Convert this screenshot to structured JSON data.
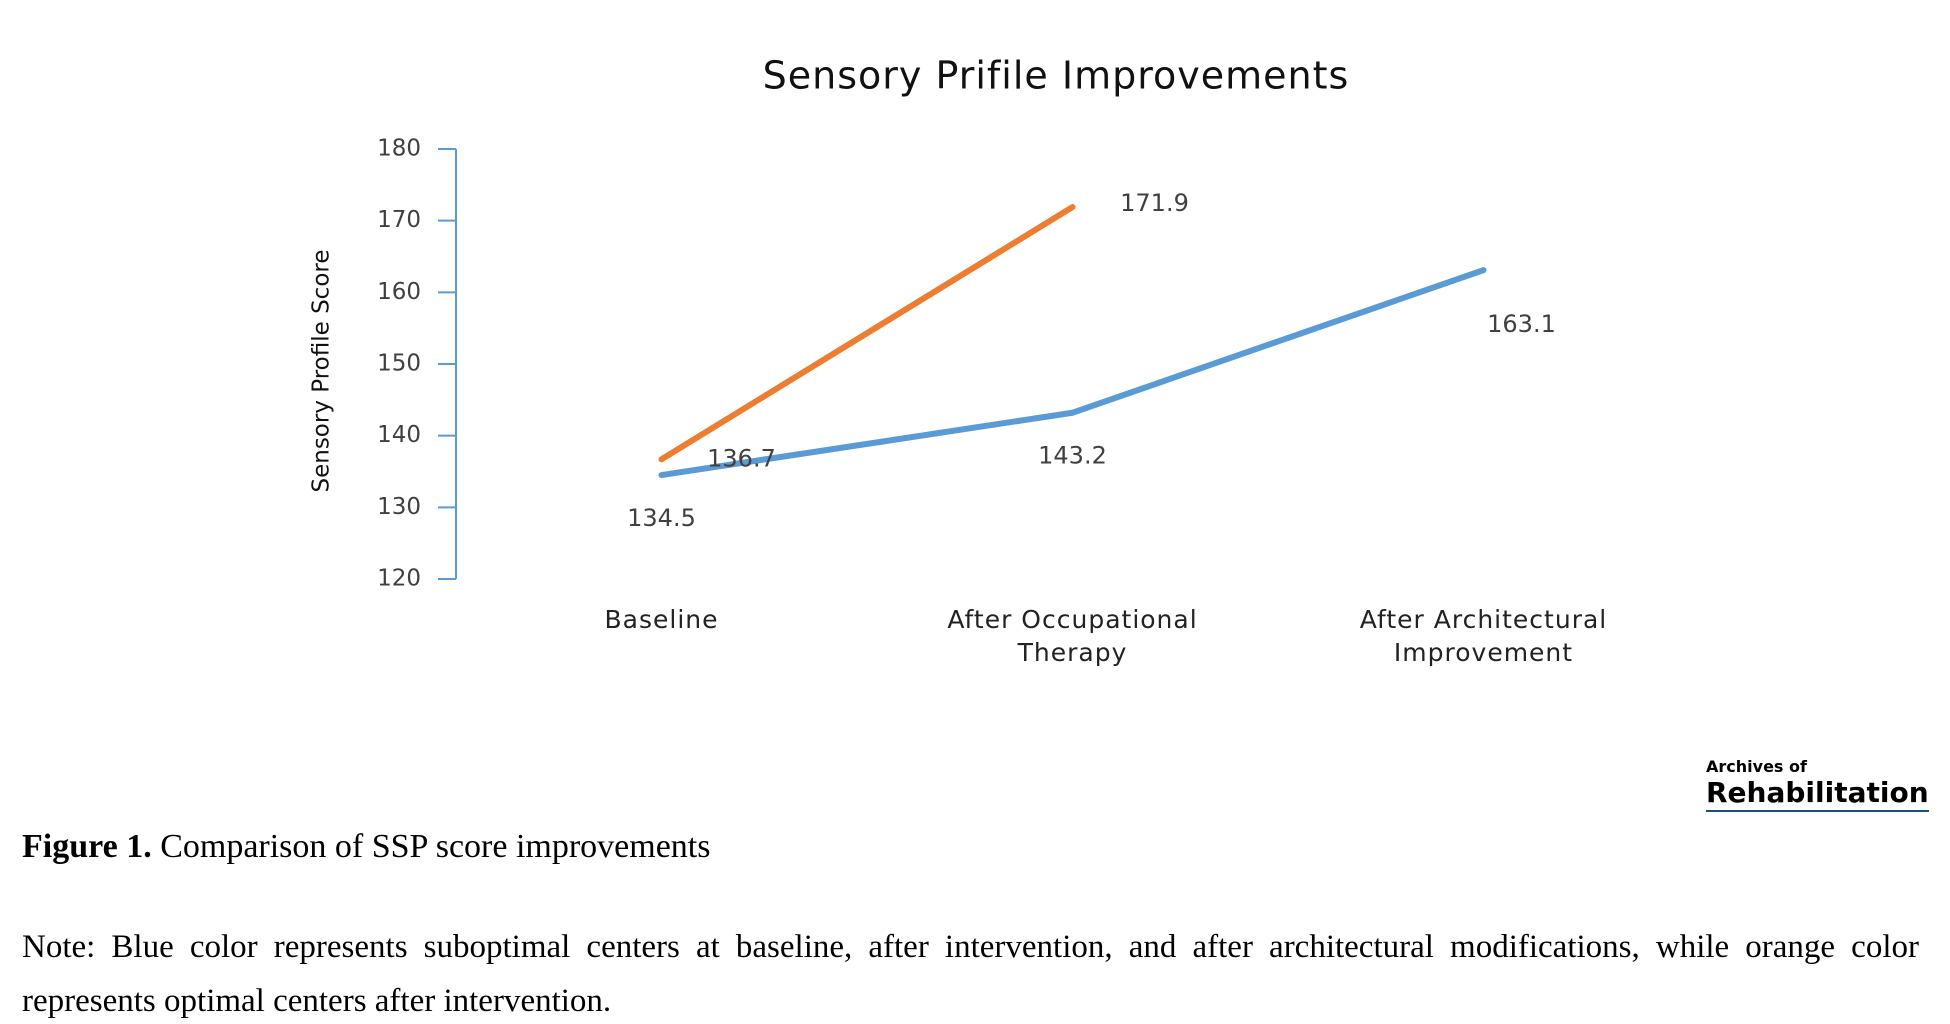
{
  "chart_data": {
    "type": "line",
    "title": "Sensory Prifile Improvements",
    "y_label": "Sensory Profile Score",
    "categories": [
      "Baseline",
      "After Occupational Therapy",
      "After Architectural Improvement"
    ],
    "series": [
      {
        "color": "#5b9bd5",
        "values": [
          134.5,
          143.2,
          163.1
        ]
      },
      {
        "color": "#ed7d31",
        "values": [
          136.7,
          171.9,
          null
        ]
      }
    ],
    "ylim": [
      120,
      180
    ],
    "yticks": [
      120,
      130,
      140,
      150,
      160,
      170,
      180
    ],
    "grid": false
  },
  "caption": {
    "label": "Figure 1.",
    "text": "Comparison of SSP score improvements"
  },
  "note": "Note: Blue color represents suboptimal centers at baseline, after intervention, and after architectural modifications, while orange color represents optimal centers after intervention.",
  "logo": {
    "top": "Archives of",
    "name": "Rehabilitation"
  }
}
